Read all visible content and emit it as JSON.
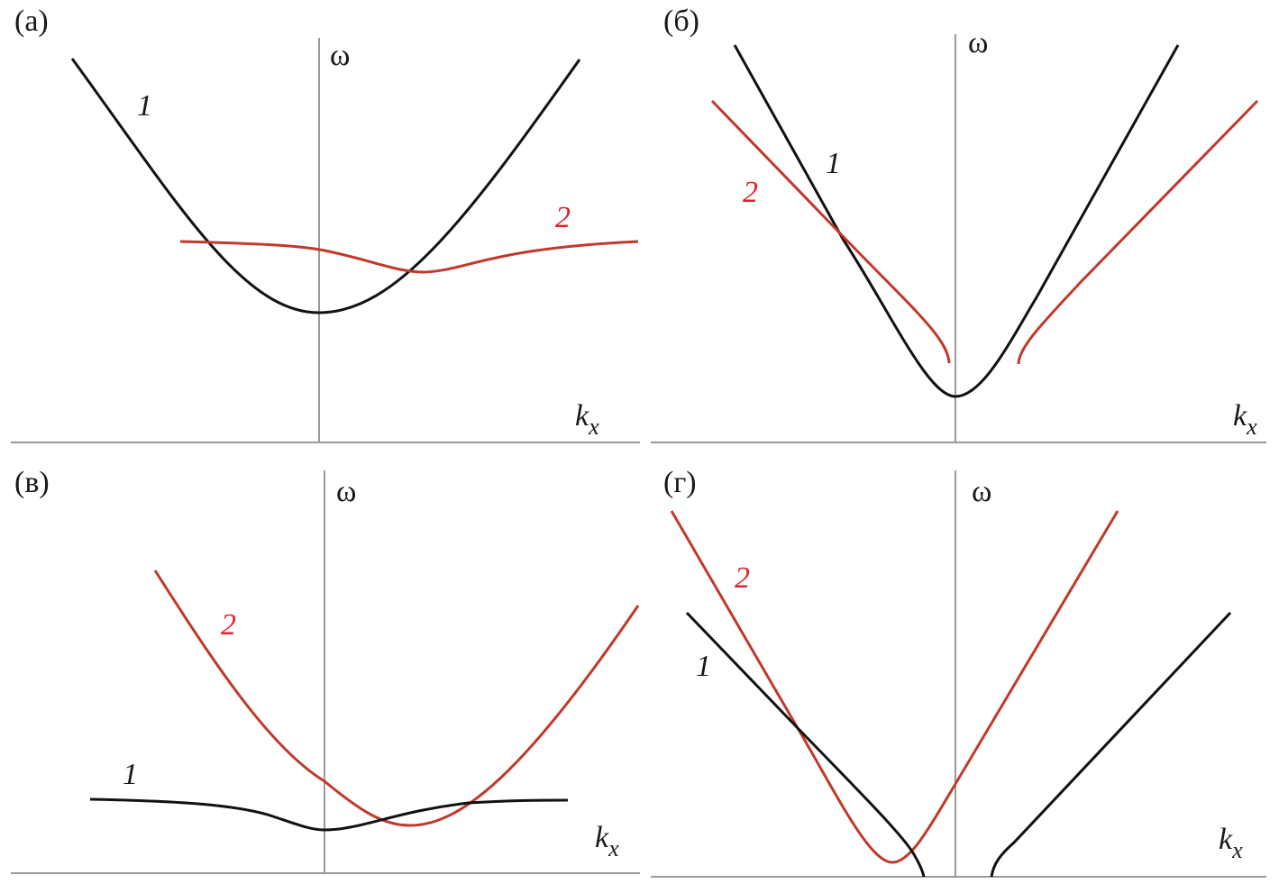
{
  "colors": {
    "curve_1": "#111111",
    "curve_2": "#c0392b",
    "label_2": "#e0202a",
    "axis": "#9a9a9a"
  },
  "panels": [
    {
      "label": "(а)",
      "y_axis": "ω",
      "x_axis_base": "k",
      "x_axis_sub": "x",
      "curve_1": "1",
      "curve_2": "2"
    },
    {
      "label": "(б)",
      "y_axis": "ω",
      "x_axis_base": "k",
      "x_axis_sub": "x",
      "curve_1": "1",
      "curve_2": "2"
    },
    {
      "label": "(в)",
      "y_axis": "ω",
      "x_axis_base": "k",
      "x_axis_sub": "x",
      "curve_1": "1",
      "curve_2": "2"
    },
    {
      "label": "(г)",
      "y_axis": "ω",
      "x_axis_base": "k",
      "x_axis_sub": "x",
      "curve_1": "1",
      "curve_2": "2"
    }
  ]
}
